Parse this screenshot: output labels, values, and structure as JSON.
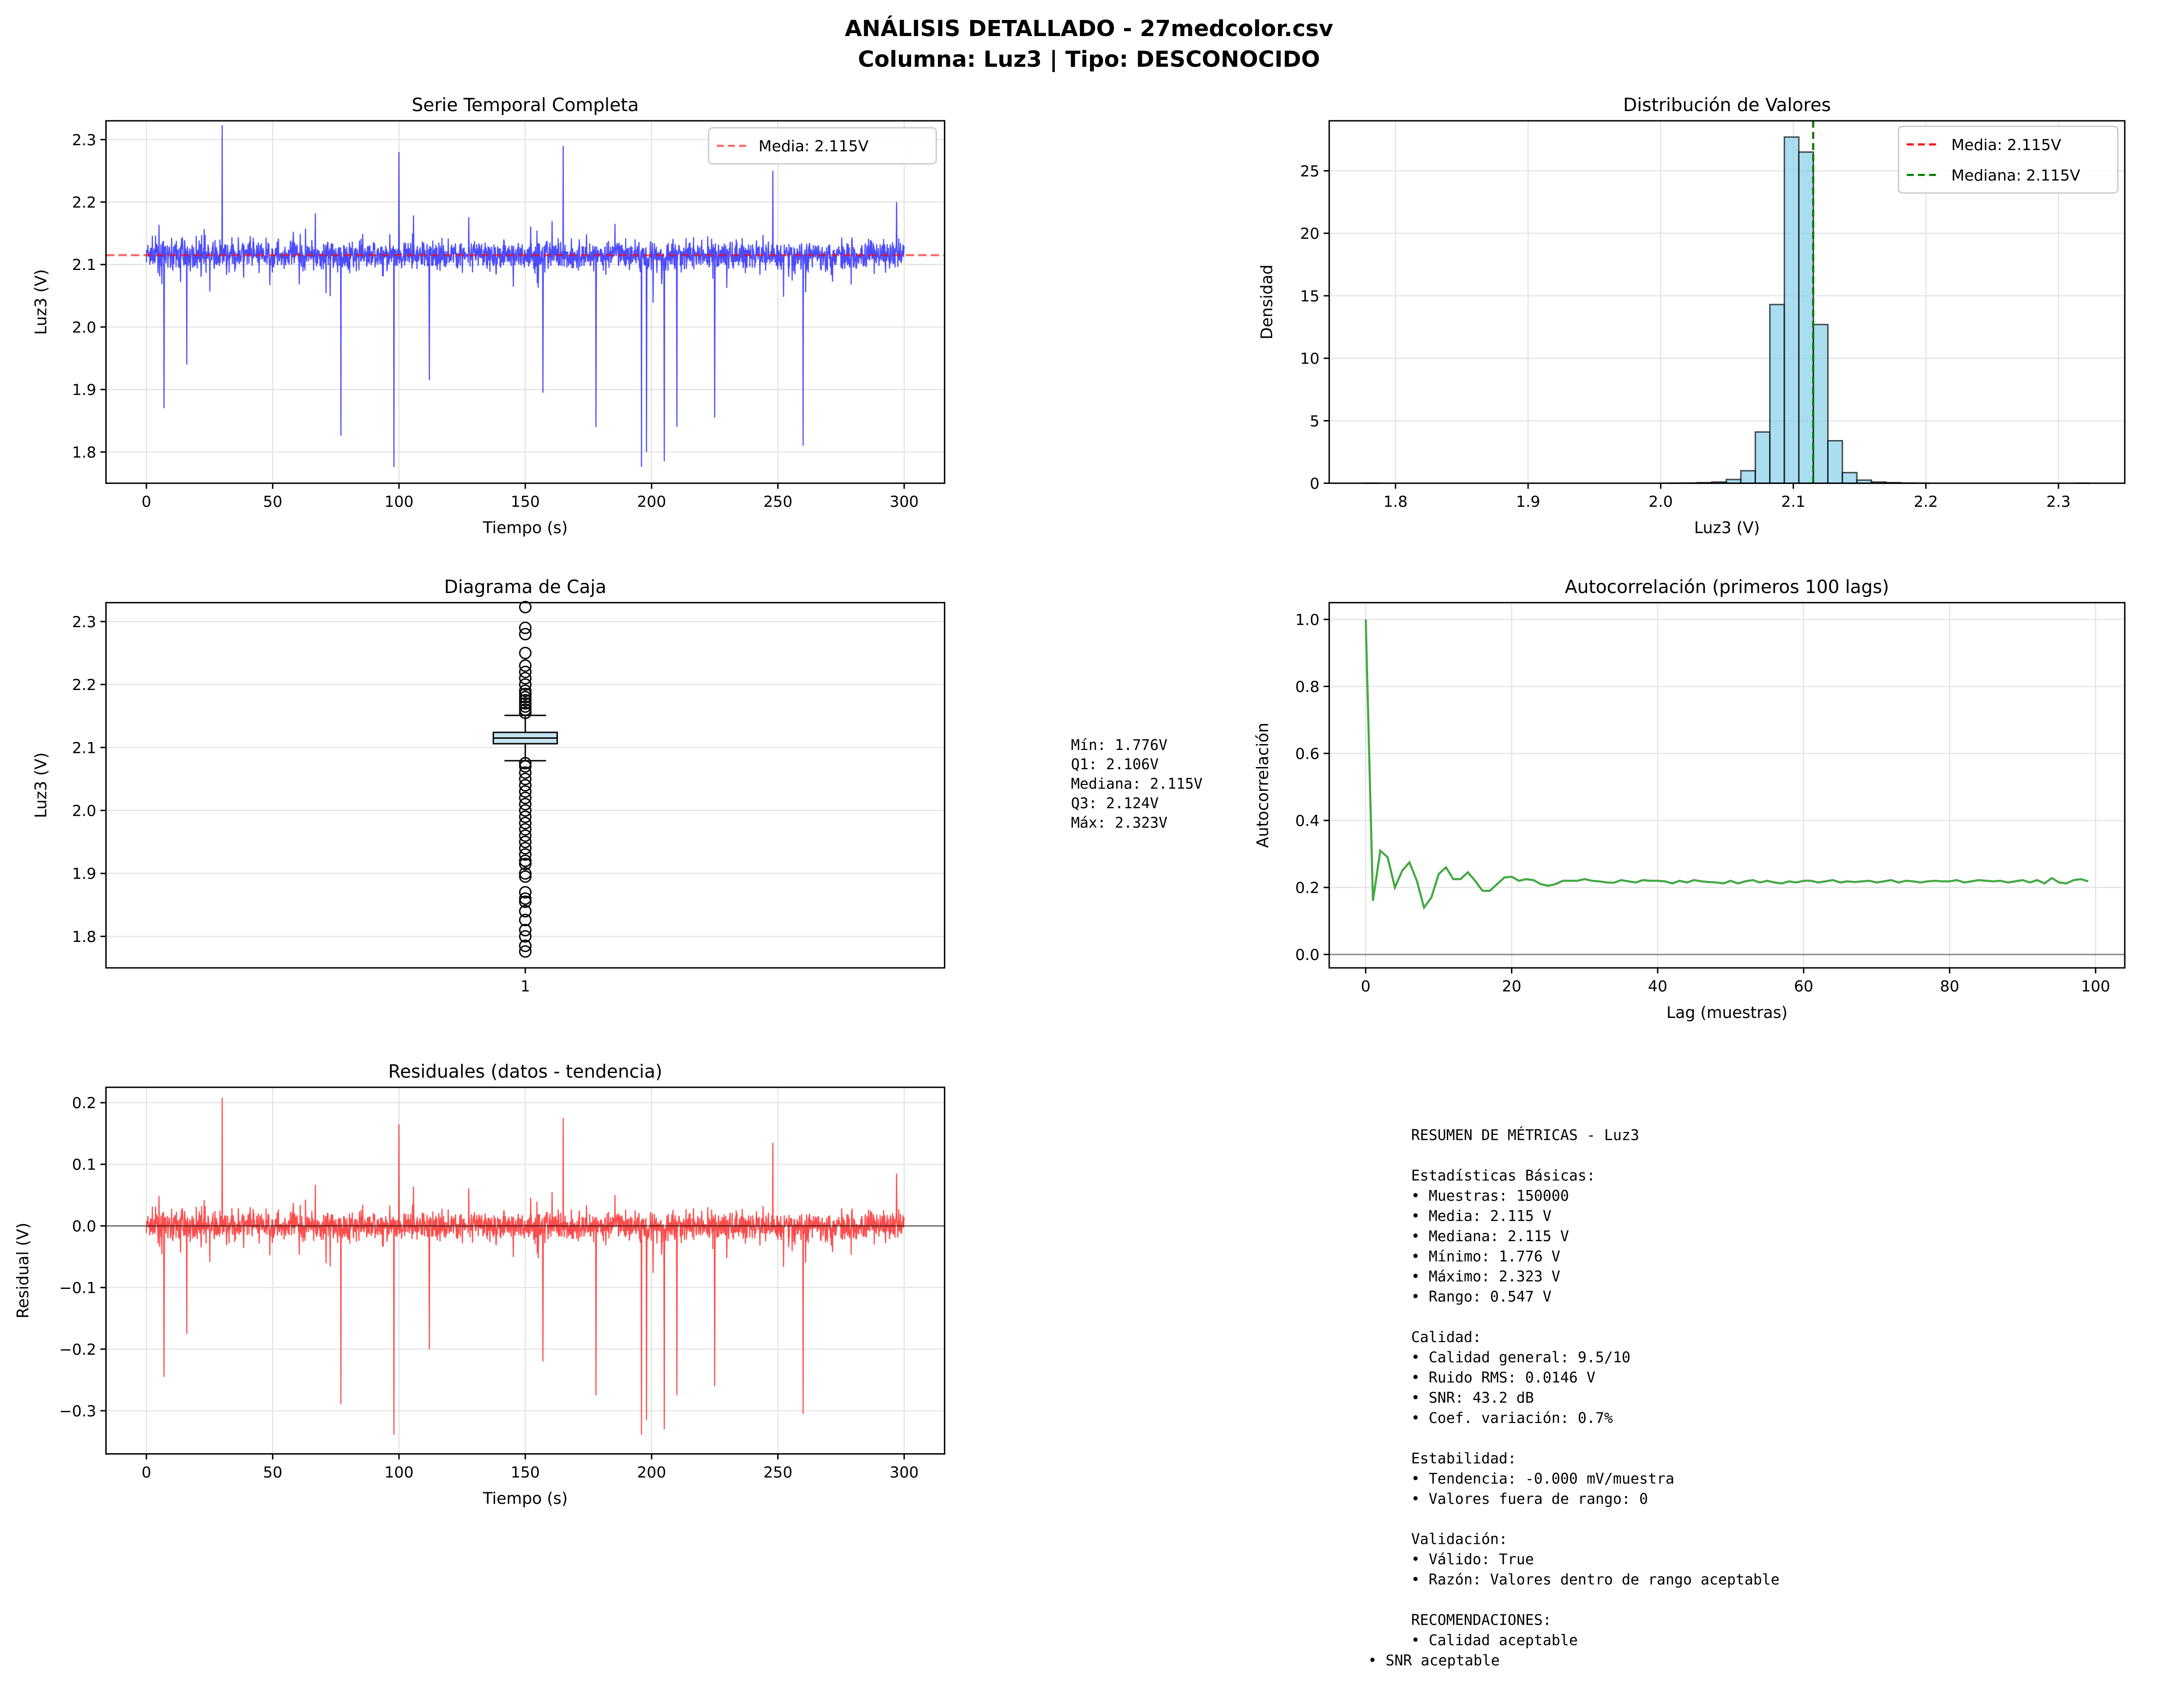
{
  "title_line1": "ANÁLISIS DETALLADO - 27medcolor.csv",
  "title_line2": "Columna: Luz3 | Tipo: DESCONOCIDO",
  "colors": {
    "series": "#0000ff",
    "mean": "#ff0000",
    "median": "#008000",
    "hist": "#87ceeb",
    "autocorr": "#2ca02c",
    "resid": "#ff0000"
  },
  "chart_data": [
    {
      "type": "line",
      "title": "Serie Temporal Completa",
      "xlabel": "Tiempo (s)",
      "ylabel": "Luz3 (V)",
      "xlim": [
        -16,
        316
      ],
      "ylim": [
        1.75,
        2.33
      ],
      "xticks": [
        "0",
        "50",
        "100",
        "150",
        "200",
        "250",
        "300"
      ],
      "yticks": [
        "1.8",
        "1.9",
        "2.0",
        "2.1",
        "2.2",
        "2.3"
      ],
      "legend": "Media: 2.115V",
      "legend_placement": "top-right",
      "mean": 2.115,
      "band": [
        2.075,
        2.16
      ],
      "spikes": [
        [
          7,
          1.87
        ],
        [
          16,
          1.94
        ],
        [
          30,
          2.323
        ],
        [
          77,
          1.826
        ],
        [
          98,
          1.776
        ],
        [
          100,
          2.28
        ],
        [
          112,
          1.915
        ],
        [
          157,
          1.895
        ],
        [
          165,
          2.29
        ],
        [
          178,
          1.84
        ],
        [
          196,
          1.776
        ],
        [
          198,
          1.8
        ],
        [
          205,
          1.785
        ],
        [
          210,
          1.84
        ],
        [
          225,
          1.855
        ],
        [
          248,
          2.25
        ],
        [
          260,
          1.81
        ],
        [
          297,
          2.2
        ]
      ]
    },
    {
      "type": "bar",
      "title": "Distribución de Valores",
      "xlabel": "Luz3 (V)",
      "ylabel": "Densidad",
      "xlim": [
        1.75,
        2.35
      ],
      "ylim": [
        0,
        29
      ],
      "xticks": [
        "1.8",
        "1.9",
        "2.0",
        "2.1",
        "2.2",
        "2.3"
      ],
      "yticks": [
        "0",
        "5",
        "10",
        "15",
        "20",
        "25"
      ],
      "bin_start": 1.776,
      "bin_width": 0.01094,
      "values": [
        0.01,
        0,
        0,
        0,
        0,
        0,
        0,
        0,
        0,
        0,
        0,
        0,
        0,
        0,
        0,
        0,
        0,
        0,
        0,
        0,
        0,
        0.01,
        0.02,
        0.05,
        0.1,
        0.3,
        1.0,
        4.1,
        14.3,
        27.7,
        26.5,
        12.7,
        3.4,
        0.85,
        0.25,
        0.1,
        0.05,
        0.02,
        0.01,
        0,
        0,
        0,
        0,
        0,
        0,
        0,
        0,
        0,
        0,
        0.01
      ],
      "legend": [
        "Media: 2.115V",
        "Mediana: 2.115V"
      ],
      "legend_placement": "top-right",
      "mean": 2.115,
      "median": 2.115
    },
    {
      "type": "box",
      "title": "Diagrama de Caja",
      "ylabel": "Luz3 (V)",
      "ylim": [
        1.75,
        2.33
      ],
      "xticks": [
        "1"
      ],
      "yticks": [
        "1.8",
        "1.9",
        "2.0",
        "2.1",
        "2.2",
        "2.3"
      ],
      "min": 1.776,
      "q1": 2.106,
      "median": 2.115,
      "q3": 2.124,
      "max": 2.323,
      "whisker_low": 2.079,
      "whisker_high": 2.151,
      "outliers_high": [
        2.155,
        2.16,
        2.165,
        2.17,
        2.175,
        2.18,
        2.185,
        2.19,
        2.2,
        2.21,
        2.22,
        2.23,
        2.25,
        2.28,
        2.29,
        2.323
      ],
      "outliers_low": [
        2.075,
        2.07,
        2.06,
        2.05,
        2.04,
        2.03,
        2.02,
        2.01,
        2.0,
        1.99,
        1.98,
        1.97,
        1.96,
        1.95,
        1.94,
        1.93,
        1.92,
        1.915,
        1.9,
        1.895,
        1.87,
        1.86,
        1.855,
        1.84,
        1.826,
        1.81,
        1.8,
        1.785,
        1.776
      ],
      "stats_text": [
        "Mín: 1.776V",
        "Q1: 2.106V",
        "Mediana: 2.115V",
        "Q3: 2.124V",
        "Máx: 2.323V"
      ]
    },
    {
      "type": "line",
      "title": "Autocorrelación (primeros 100 lags)",
      "xlabel": "Lag (muestras)",
      "ylabel": "Autocorrelación",
      "xlim": [
        -5,
        104
      ],
      "ylim": [
        -0.04,
        1.05
      ],
      "xticks": [
        "0",
        "20",
        "40",
        "60",
        "80",
        "100"
      ],
      "yticks": [
        "0.0",
        "0.2",
        "0.4",
        "0.6",
        "0.8",
        "1.0"
      ],
      "values": [
        1.0,
        0.16,
        0.31,
        0.29,
        0.2,
        0.25,
        0.275,
        0.22,
        0.14,
        0.17,
        0.24,
        0.26,
        0.225,
        0.225,
        0.245,
        0.22,
        0.19,
        0.19,
        0.21,
        0.23,
        0.232,
        0.22,
        0.225,
        0.222,
        0.21,
        0.205,
        0.21,
        0.22,
        0.22,
        0.22,
        0.225,
        0.22,
        0.218,
        0.215,
        0.214,
        0.222,
        0.218,
        0.215,
        0.222,
        0.22,
        0.22,
        0.218,
        0.212,
        0.22,
        0.215,
        0.222,
        0.218,
        0.216,
        0.215,
        0.212,
        0.22,
        0.212,
        0.218,
        0.222,
        0.215,
        0.22,
        0.215,
        0.212,
        0.218,
        0.215,
        0.22,
        0.22,
        0.215,
        0.218,
        0.222,
        0.215,
        0.218,
        0.216,
        0.218,
        0.22,
        0.215,
        0.218,
        0.222,
        0.215,
        0.22,
        0.218,
        0.215,
        0.218,
        0.22,
        0.218,
        0.218,
        0.222,
        0.215,
        0.218,
        0.222,
        0.22,
        0.218,
        0.22,
        0.215,
        0.218,
        0.222,
        0.215,
        0.222,
        0.212,
        0.228,
        0.215,
        0.212,
        0.222,
        0.225,
        0.218
      ]
    },
    {
      "type": "line",
      "title": "Residuales (datos - tendencia)",
      "xlabel": "Tiempo (s)",
      "ylabel": "Residual (V)",
      "xlim": [
        -16,
        316
      ],
      "ylim": [
        -0.37,
        0.225
      ],
      "xticks": [
        "0",
        "50",
        "100",
        "150",
        "200",
        "250",
        "300"
      ],
      "yticks": [
        "−0.3",
        "−0.2",
        "−0.1",
        "0.0",
        "0.1",
        "0.2"
      ]
    }
  ],
  "summary": [
    "RESUMEN DE MÉTRICAS - Luz3",
    "",
    "Estadísticas Básicas:",
    "• Muestras: 150000",
    "• Media: 2.115 V",
    "• Mediana: 2.115 V",
    "• Mínimo: 1.776 V",
    "• Máximo: 2.323 V",
    "• Rango: 0.547 V",
    "",
    "Calidad:",
    "• Calidad general: 9.5/10",
    "• Ruido RMS: 0.0146 V",
    "• SNR: 43.2 dB",
    "• Coef. variación: 0.7%",
    "",
    "Estabilidad:",
    "• Tendencia: -0.000 mV/muestra",
    "• Valores fuera de rango: 0",
    "",
    "Validación:",
    "• Válido: True",
    "• Razón: Valores dentro de rango aceptable",
    "",
    "RECOMENDACIONES:",
    "• Calidad aceptable"
  ],
  "summary_last": "• SNR aceptable"
}
